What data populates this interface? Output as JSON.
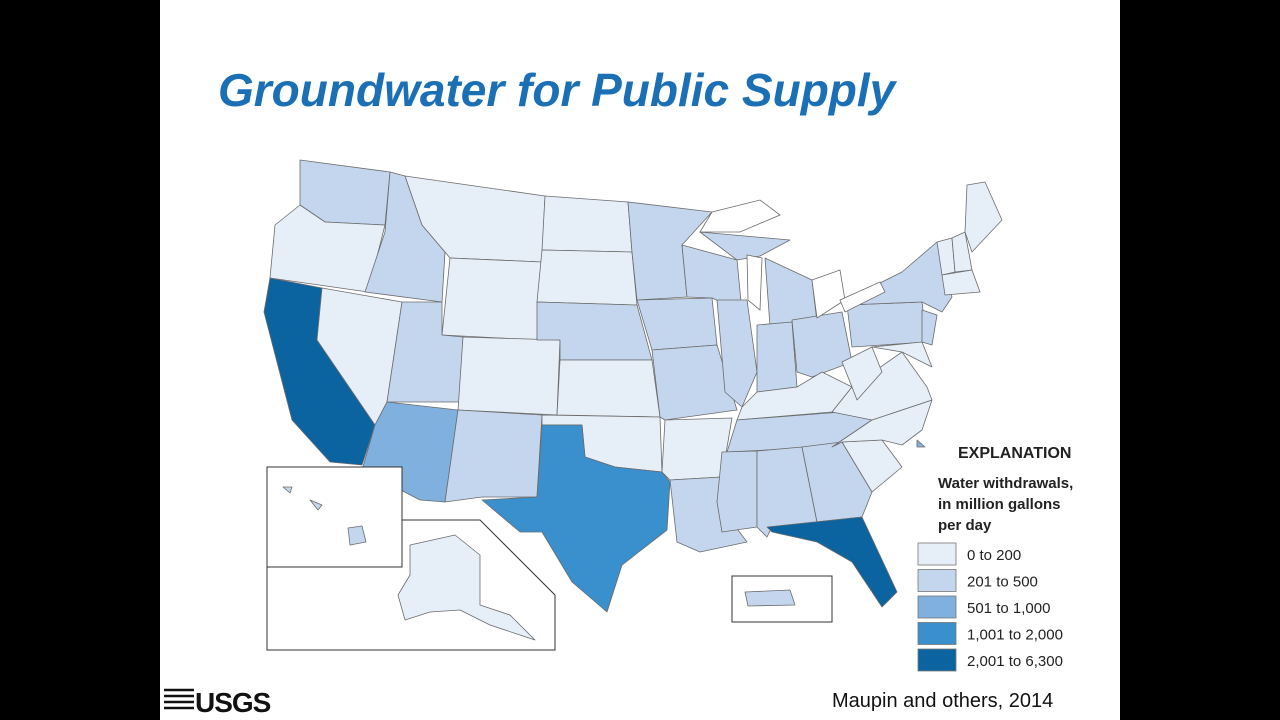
{
  "slide": {
    "title": "Groundwater for Public Supply",
    "legend": {
      "heading": "EXPLANATION",
      "subtitle": [
        "Water withdrawals,",
        "in million gallons",
        "per day"
      ],
      "items": [
        {
          "label": "0 to 200",
          "color": "#e6eef8"
        },
        {
          "label": "201 to 500",
          "color": "#c4d6ee"
        },
        {
          "label": "501 to 1,000",
          "color": "#7fb0de"
        },
        {
          "label": "1,001 to 2,000",
          "color": "#3a8fcd"
        },
        {
          "label": "2,001 to 6,300",
          "color": "#0b64a0"
        }
      ]
    },
    "logo": "USGS",
    "citation": "Maupin and others, 2014"
  }
}
